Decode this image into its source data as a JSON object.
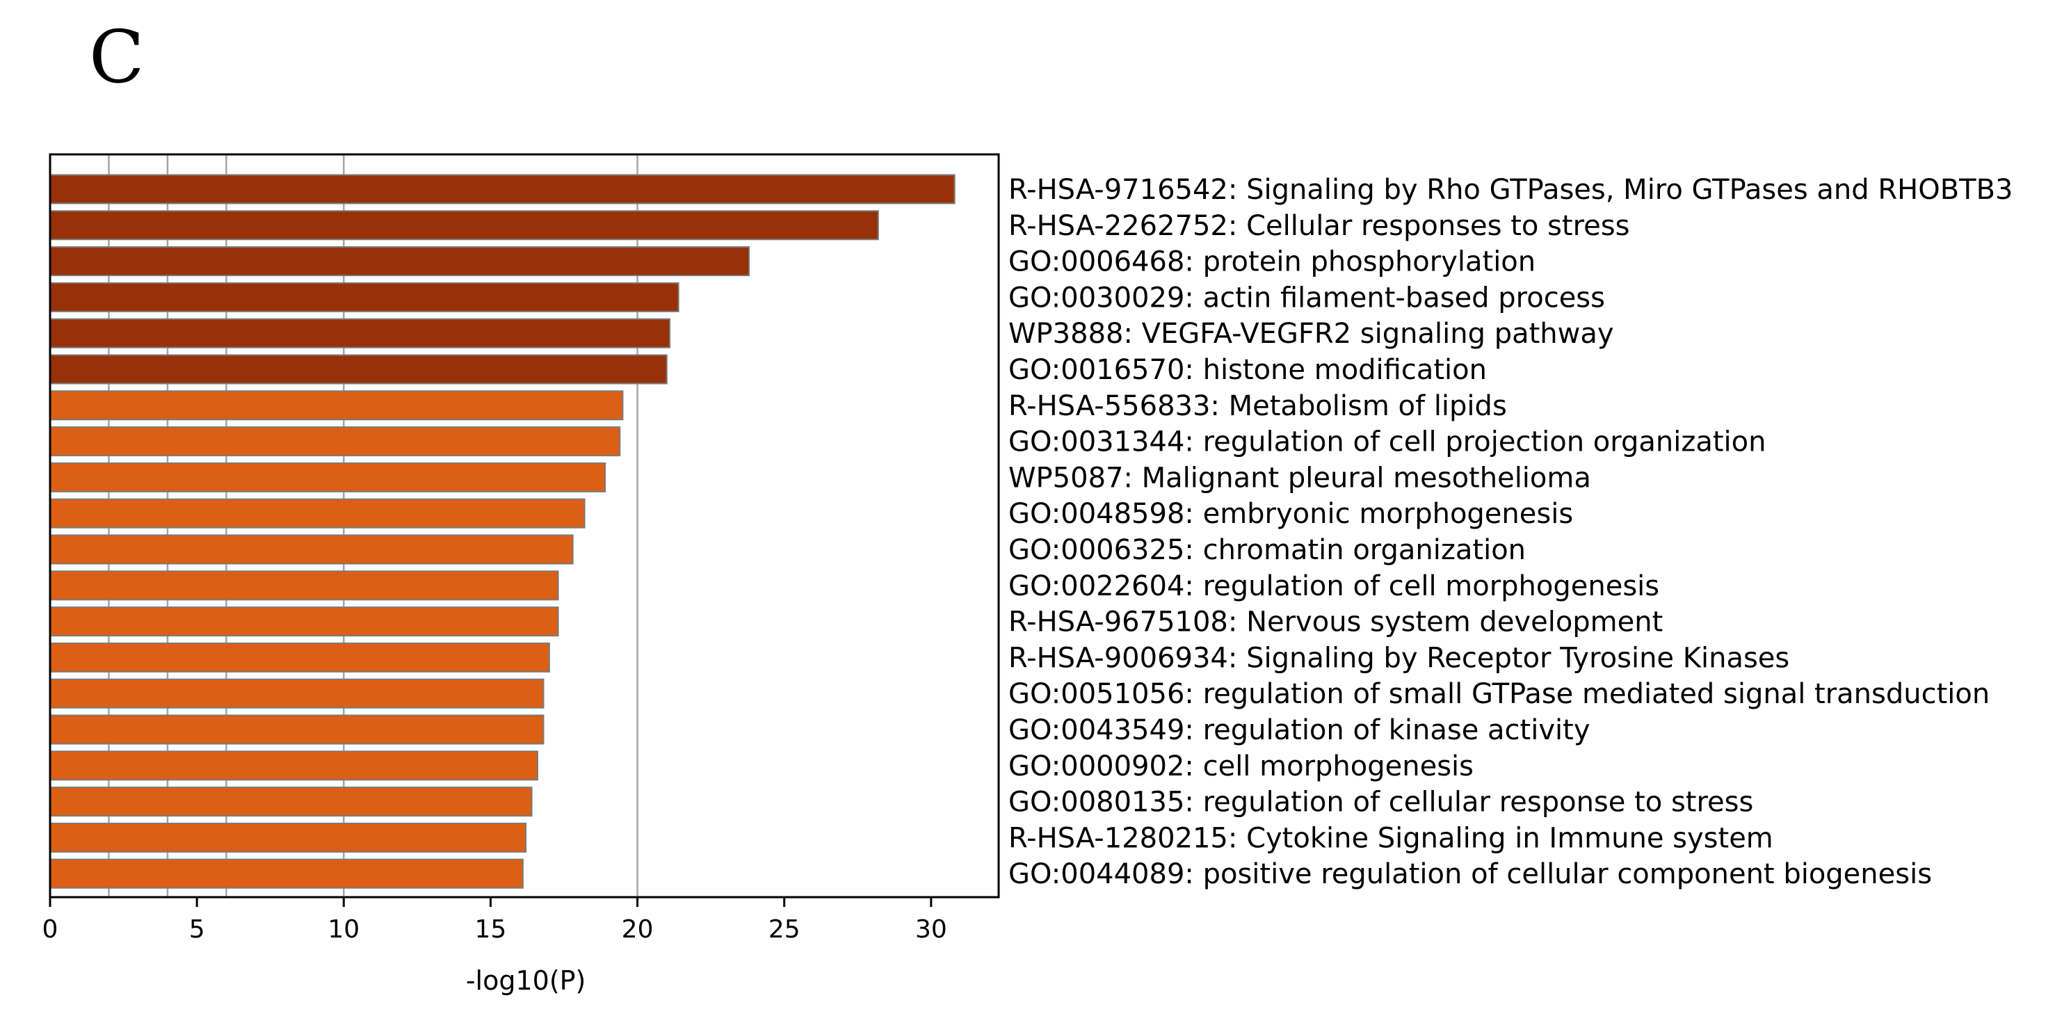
{
  "panel_label": "C",
  "chart_data": {
    "type": "bar",
    "orientation": "horizontal",
    "title": "",
    "xlabel": "-log10(P)",
    "ylabel": "",
    "xlim": [
      0,
      32.3
    ],
    "xticks": [
      0,
      5,
      10,
      15,
      20,
      25,
      30
    ],
    "grid_lines_x": [
      2,
      4,
      6,
      10,
      20
    ],
    "colors": {
      "dark": "#983108",
      "light": "#dd5f13",
      "bar_edge": "#7a7a7a"
    },
    "categories": [
      "R-HSA-9716542: Signaling by Rho GTPases, Miro GTPases and RHOBTB3",
      "R-HSA-2262752: Cellular responses to stress",
      "GO:0006468: protein phosphorylation",
      "GO:0030029: actin filament-based process",
      "WP3888: VEGFA-VEGFR2 signaling pathway",
      "GO:0016570: histone modification",
      "R-HSA-556833: Metabolism of lipids",
      "GO:0031344: regulation of cell projection organization",
      "WP5087: Malignant pleural mesothelioma",
      "GO:0048598: embryonic morphogenesis",
      "GO:0006325: chromatin organization",
      "GO:0022604: regulation of cell morphogenesis",
      "R-HSA-9675108: Nervous system development",
      "R-HSA-9006934: Signaling by Receptor Tyrosine Kinases",
      "GO:0051056: regulation of small GTPase mediated signal transduction",
      "GO:0043549: regulation of kinase activity",
      "GO:0000902: cell morphogenesis",
      "GO:0080135: regulation of cellular response to stress",
      "R-HSA-1280215: Cytokine Signaling in Immune system",
      "GO:0044089: positive regulation of cellular component biogenesis"
    ],
    "values": [
      30.8,
      28.2,
      23.8,
      21.4,
      21.1,
      21.0,
      19.5,
      19.4,
      18.9,
      18.2,
      17.8,
      17.3,
      17.3,
      17.0,
      16.8,
      16.8,
      16.6,
      16.4,
      16.2,
      16.1
    ],
    "bar_color_groups": [
      "dark",
      "dark",
      "dark",
      "dark",
      "dark",
      "dark",
      "light",
      "light",
      "light",
      "light",
      "light",
      "light",
      "light",
      "light",
      "light",
      "light",
      "light",
      "light",
      "light",
      "light"
    ]
  }
}
